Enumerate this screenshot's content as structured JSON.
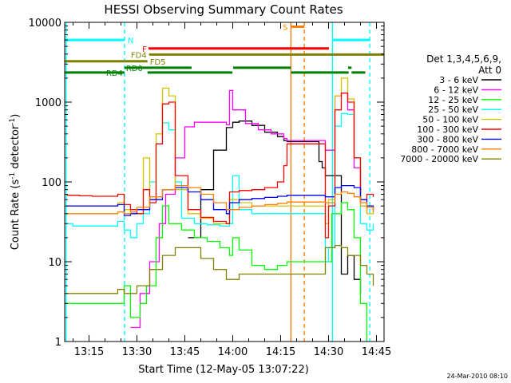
{
  "chart_data": {
    "type": "line",
    "title": "HESSI Observing Summary Count Rates",
    "xlabel": "Start Time (12-May-05 13:07:22)",
    "ylabel_main": "Count Rate (s",
    "ylabel_sup": "-1",
    "ylabel_mid": " detector",
    "ylabel_sup2": "-1",
    "ylabel_end": ")",
    "yscale": "log",
    "ylim": [
      1,
      10000
    ],
    "xlim_minutes": [
      787.37,
      887.37
    ],
    "x_ticks": [
      {
        "label": "13:15",
        "minute": 795
      },
      {
        "label": "13:30",
        "minute": 810
      },
      {
        "label": "13:45",
        "minute": 825
      },
      {
        "label": "14:00",
        "minute": 840
      },
      {
        "label": "14:15",
        "minute": 855
      },
      {
        "label": "14:30",
        "minute": 870
      },
      {
        "label": "14:45",
        "minute": 885
      }
    ],
    "y_ticks": [
      {
        "label": "1",
        "value": 1
      },
      {
        "label": "10",
        "value": 10
      },
      {
        "label": "100",
        "value": 100
      },
      {
        "label": "1000",
        "value": 1000
      },
      {
        "label": "10000",
        "value": 10000
      }
    ],
    "legend_title_1": "Det 1,3,4,5,6,9,",
    "legend_title_2": "Att 0",
    "legend_position": "right",
    "series": [
      {
        "name": "3 - 6 keV",
        "color": "#000000",
        "points": [
          [
            826,
            20
          ],
          [
            830,
            80
          ],
          [
            834,
            250
          ],
          [
            838,
            480
          ],
          [
            840,
            560
          ],
          [
            842,
            580
          ],
          [
            846,
            510
          ],
          [
            850,
            420
          ],
          [
            854,
            370
          ],
          [
            856,
            330
          ],
          [
            857,
            320
          ],
          [
            867,
            180
          ],
          [
            868,
            150
          ],
          [
            869,
            120
          ],
          [
            874,
            7
          ],
          [
            876,
            12
          ],
          [
            878,
            6
          ],
          [
            880,
            4
          ]
        ]
      },
      {
        "name": "6 - 12 keV",
        "color": "#ff00ff",
        "points": [
          [
            808,
            1.5
          ],
          [
            811,
            4
          ],
          [
            814,
            10
          ],
          [
            817,
            30
          ],
          [
            819,
            70
          ],
          [
            822,
            200
          ],
          [
            825,
            490
          ],
          [
            828,
            560
          ],
          [
            830,
            560
          ],
          [
            834,
            560
          ],
          [
            838,
            520
          ],
          [
            839,
            1400
          ],
          [
            840,
            800
          ],
          [
            844,
            540
          ],
          [
            848,
            450
          ],
          [
            852,
            400
          ],
          [
            856,
            350
          ],
          [
            857,
            330
          ],
          [
            869,
            250
          ],
          [
            872,
            1200
          ],
          [
            874,
            1300
          ],
          [
            876,
            800
          ],
          [
            878,
            150
          ],
          [
            880,
            50
          ],
          [
            882,
            40
          ]
        ]
      },
      {
        "name": "12 - 25 keV",
        "color": "#00ff00",
        "points": [
          [
            787.5,
            3
          ],
          [
            800,
            3
          ],
          [
            806,
            5
          ],
          [
            808,
            2
          ],
          [
            811,
            3
          ],
          [
            813,
            5
          ],
          [
            816,
            20
          ],
          [
            818,
            50
          ],
          [
            820,
            30
          ],
          [
            824,
            25
          ],
          [
            828,
            20
          ],
          [
            832,
            18
          ],
          [
            836,
            15
          ],
          [
            839,
            12
          ],
          [
            840,
            20
          ],
          [
            842,
            14
          ],
          [
            846,
            9
          ],
          [
            850,
            8
          ],
          [
            854,
            9
          ],
          [
            857,
            10
          ],
          [
            869,
            10
          ],
          [
            871,
            40
          ],
          [
            874,
            55
          ],
          [
            876,
            45
          ],
          [
            878,
            20
          ],
          [
            880,
            3
          ],
          [
            882,
            1
          ]
        ]
      },
      {
        "name": "25 - 50 keV",
        "color": "#00ffff",
        "points": [
          [
            788,
            30
          ],
          [
            790,
            28
          ],
          [
            800,
            28
          ],
          [
            804,
            32
          ],
          [
            806,
            25
          ],
          [
            808,
            20
          ],
          [
            810,
            30
          ],
          [
            812,
            40
          ],
          [
            814,
            100
          ],
          [
            816,
            300
          ],
          [
            818,
            550
          ],
          [
            820,
            450
          ],
          [
            822,
            100
          ],
          [
            824,
            35
          ],
          [
            828,
            30
          ],
          [
            832,
            29
          ],
          [
            836,
            28
          ],
          [
            839,
            30
          ],
          [
            840,
            120
          ],
          [
            842,
            45
          ],
          [
            846,
            40
          ],
          [
            850,
            40
          ],
          [
            854,
            40
          ],
          [
            857,
            40
          ],
          [
            869,
            10
          ],
          [
            870,
            15
          ],
          [
            872,
            500
          ],
          [
            874,
            720
          ],
          [
            876,
            700
          ],
          [
            878,
            200
          ],
          [
            880,
            30
          ],
          [
            882,
            25
          ],
          [
            884,
            30
          ]
        ]
      },
      {
        "name": "50 - 100 keV",
        "color": "#d4c300",
        "points": [
          [
            788,
            50
          ],
          [
            792,
            50
          ],
          [
            796,
            50
          ],
          [
            800,
            50
          ],
          [
            804,
            55
          ],
          [
            806,
            45
          ],
          [
            808,
            40
          ],
          [
            810,
            40
          ],
          [
            812,
            200
          ],
          [
            814,
            60
          ],
          [
            816,
            400
          ],
          [
            818,
            1500
          ],
          [
            820,
            1200
          ],
          [
            822,
            80
          ],
          [
            826,
            40
          ],
          [
            830,
            35
          ],
          [
            834,
            30
          ],
          [
            838,
            30
          ],
          [
            839,
            60
          ],
          [
            842,
            55
          ],
          [
            846,
            50
          ],
          [
            850,
            50
          ],
          [
            854,
            50
          ],
          [
            857,
            50
          ],
          [
            869,
            30
          ],
          [
            870,
            60
          ],
          [
            872,
            1200
          ],
          [
            874,
            2000
          ],
          [
            876,
            1100
          ],
          [
            878,
            200
          ],
          [
            880,
            50
          ],
          [
            882,
            40
          ],
          [
            884,
            45
          ]
        ]
      },
      {
        "name": "100 - 300 keV",
        "color": "#ff0000",
        "points": [
          [
            788,
            68
          ],
          [
            792,
            67
          ],
          [
            796,
            66
          ],
          [
            800,
            66
          ],
          [
            804,
            70
          ],
          [
            806,
            52
          ],
          [
            808,
            45
          ],
          [
            810,
            40
          ],
          [
            812,
            80
          ],
          [
            814,
            55
          ],
          [
            816,
            300
          ],
          [
            818,
            950
          ],
          [
            820,
            1000
          ],
          [
            822,
            120
          ],
          [
            826,
            45
          ],
          [
            830,
            36
          ],
          [
            834,
            32
          ],
          [
            838,
            30
          ],
          [
            839,
            75
          ],
          [
            842,
            78
          ],
          [
            846,
            80
          ],
          [
            850,
            85
          ],
          [
            854,
            100
          ],
          [
            856,
            160
          ],
          [
            857,
            300
          ],
          [
            869,
            20
          ],
          [
            870,
            50
          ],
          [
            872,
            800
          ],
          [
            874,
            1300
          ],
          [
            876,
            1000
          ],
          [
            878,
            200
          ],
          [
            880,
            60
          ],
          [
            882,
            70
          ],
          [
            884,
            65
          ]
        ]
      },
      {
        "name": "300 - 800 keV",
        "color": "#0000ff",
        "points": [
          [
            788,
            50
          ],
          [
            792,
            50
          ],
          [
            796,
            50
          ],
          [
            800,
            50
          ],
          [
            804,
            52
          ],
          [
            806,
            38
          ],
          [
            808,
            40
          ],
          [
            810,
            45
          ],
          [
            814,
            60
          ],
          [
            818,
            80
          ],
          [
            822,
            85
          ],
          [
            826,
            75
          ],
          [
            830,
            60
          ],
          [
            834,
            45
          ],
          [
            838,
            40
          ],
          [
            839,
            55
          ],
          [
            842,
            60
          ],
          [
            846,
            62
          ],
          [
            850,
            64
          ],
          [
            854,
            66
          ],
          [
            857,
            68
          ],
          [
            869,
            65
          ],
          [
            872,
            85
          ],
          [
            874,
            90
          ],
          [
            876,
            90
          ],
          [
            878,
            85
          ],
          [
            880,
            60
          ],
          [
            882,
            50
          ],
          [
            884,
            45
          ]
        ]
      },
      {
        "name": "800 - 7000 keV",
        "color": "#ff8000",
        "points": [
          [
            788,
            40
          ],
          [
            792,
            40
          ],
          [
            796,
            40
          ],
          [
            800,
            40
          ],
          [
            804,
            42
          ],
          [
            806,
            40
          ],
          [
            808,
            42
          ],
          [
            810,
            48
          ],
          [
            814,
            65
          ],
          [
            818,
            80
          ],
          [
            822,
            90
          ],
          [
            826,
            85
          ],
          [
            830,
            70
          ],
          [
            834,
            55
          ],
          [
            838,
            45
          ],
          [
            839,
            45
          ],
          [
            842,
            48
          ],
          [
            846,
            50
          ],
          [
            850,
            52
          ],
          [
            854,
            54
          ],
          [
            857,
            56
          ],
          [
            869,
            55
          ],
          [
            872,
            70
          ],
          [
            874,
            75
          ],
          [
            876,
            72
          ],
          [
            878,
            65
          ],
          [
            880,
            55
          ],
          [
            882,
            48
          ],
          [
            884,
            42
          ]
        ]
      },
      {
        "name": "7000 - 20000 keV",
        "color": "#808000",
        "points": [
          [
            788,
            4
          ],
          [
            792,
            4
          ],
          [
            796,
            4
          ],
          [
            800,
            4
          ],
          [
            804,
            4.5
          ],
          [
            806,
            4
          ],
          [
            808,
            4
          ],
          [
            810,
            5
          ],
          [
            814,
            8
          ],
          [
            818,
            12
          ],
          [
            822,
            15
          ],
          [
            826,
            15
          ],
          [
            830,
            11
          ],
          [
            834,
            8
          ],
          [
            838,
            6
          ],
          [
            839,
            6
          ],
          [
            842,
            7
          ],
          [
            846,
            7
          ],
          [
            850,
            7
          ],
          [
            854,
            7
          ],
          [
            857,
            7
          ],
          [
            869,
            15
          ],
          [
            872,
            16
          ],
          [
            874,
            15
          ],
          [
            876,
            12
          ],
          [
            878,
            12
          ],
          [
            880,
            9
          ],
          [
            882,
            7
          ],
          [
            884,
            5
          ]
        ]
      }
    ],
    "state_bars": [
      {
        "label": "N",
        "color": "#00ffff",
        "y": 6000,
        "segments": [
          [
            787.37,
            806.1
          ],
          [
            871.2,
            882.9
          ]
        ]
      },
      {
        "label": "S",
        "color": "#ff8000",
        "y": 8800,
        "segments": [
          [
            858.2,
            862.4
          ]
        ]
      },
      {
        "label": "F",
        "color": "#ff0000",
        "y": 4700,
        "segments": [
          [
            813.6,
            870.1
          ]
        ]
      },
      {
        "label": "FD4",
        "color": "#808000",
        "y": 3950,
        "segments": [
          [
            813.8,
            887.37
          ]
        ]
      },
      {
        "label": "FD5",
        "color": "#808000",
        "y": 3250,
        "segments": [
          [
            787.37,
            813.3
          ]
        ]
      },
      {
        "label": "RD0",
        "color": "#008000",
        "y": 2700,
        "segments": [
          [
            806.1,
            827.1
          ],
          [
            840.1,
            858.2
          ],
          [
            876.1,
            877.2
          ]
        ]
      },
      {
        "label": "RD4",
        "color": "#008000",
        "y": 2350,
        "segments": [
          [
            787.37,
            806.1
          ],
          [
            813.3,
            839.9
          ],
          [
            858.2,
            876.3
          ],
          [
            877.2,
            881.5
          ]
        ]
      }
    ],
    "vertical_lines": [
      {
        "minute": 787.8,
        "color": "#00ffff",
        "style": "solid"
      },
      {
        "minute": 806.1,
        "color": "#00ffff",
        "style": "dashed"
      },
      {
        "minute": 858.2,
        "color": "#ff8000",
        "style": "solid"
      },
      {
        "minute": 862.4,
        "color": "#ff8000",
        "style": "dashed"
      },
      {
        "minute": 871.2,
        "color": "#00ffff",
        "style": "solid"
      },
      {
        "minute": 882.9,
        "color": "#00ffff",
        "style": "dashed"
      }
    ]
  },
  "footer_timestamp": "24-Mar-2010 08:10"
}
